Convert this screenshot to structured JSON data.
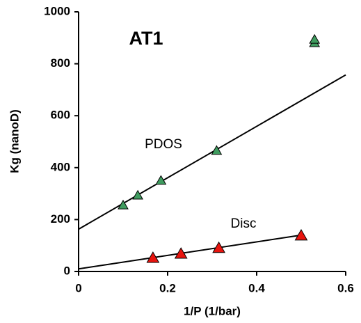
{
  "chart_data": {
    "type": "scatter",
    "x_label": "1/P (1/bar)",
    "y_label": "Kg (nanoD)",
    "annotation": "AT1",
    "xlim": [
      0,
      0.6
    ],
    "xticks": [
      0,
      0.2,
      0.4,
      0.6
    ],
    "ylim": [
      0,
      1000
    ],
    "yticks": [
      0,
      200,
      400,
      600,
      800,
      1000
    ],
    "series": [
      {
        "name": "PDOS",
        "color": "#3f9c5f",
        "x": [
          0.1,
          0.133,
          0.185,
          0.31,
          0.53,
          0.53
        ],
        "values": [
          255,
          293,
          350,
          465,
          880,
          893
        ],
        "fit": {
          "x": [
            0,
            0.6
          ],
          "values": [
            163,
            757
          ]
        }
      },
      {
        "name": "Disc",
        "color": "#e8140e",
        "x": [
          0.167,
          0.23,
          0.315,
          0.5
        ],
        "values": [
          52,
          68,
          90,
          138
        ],
        "fit": {
          "x": [
            0,
            0.5
          ],
          "values": [
            10,
            140
          ]
        }
      }
    ]
  }
}
